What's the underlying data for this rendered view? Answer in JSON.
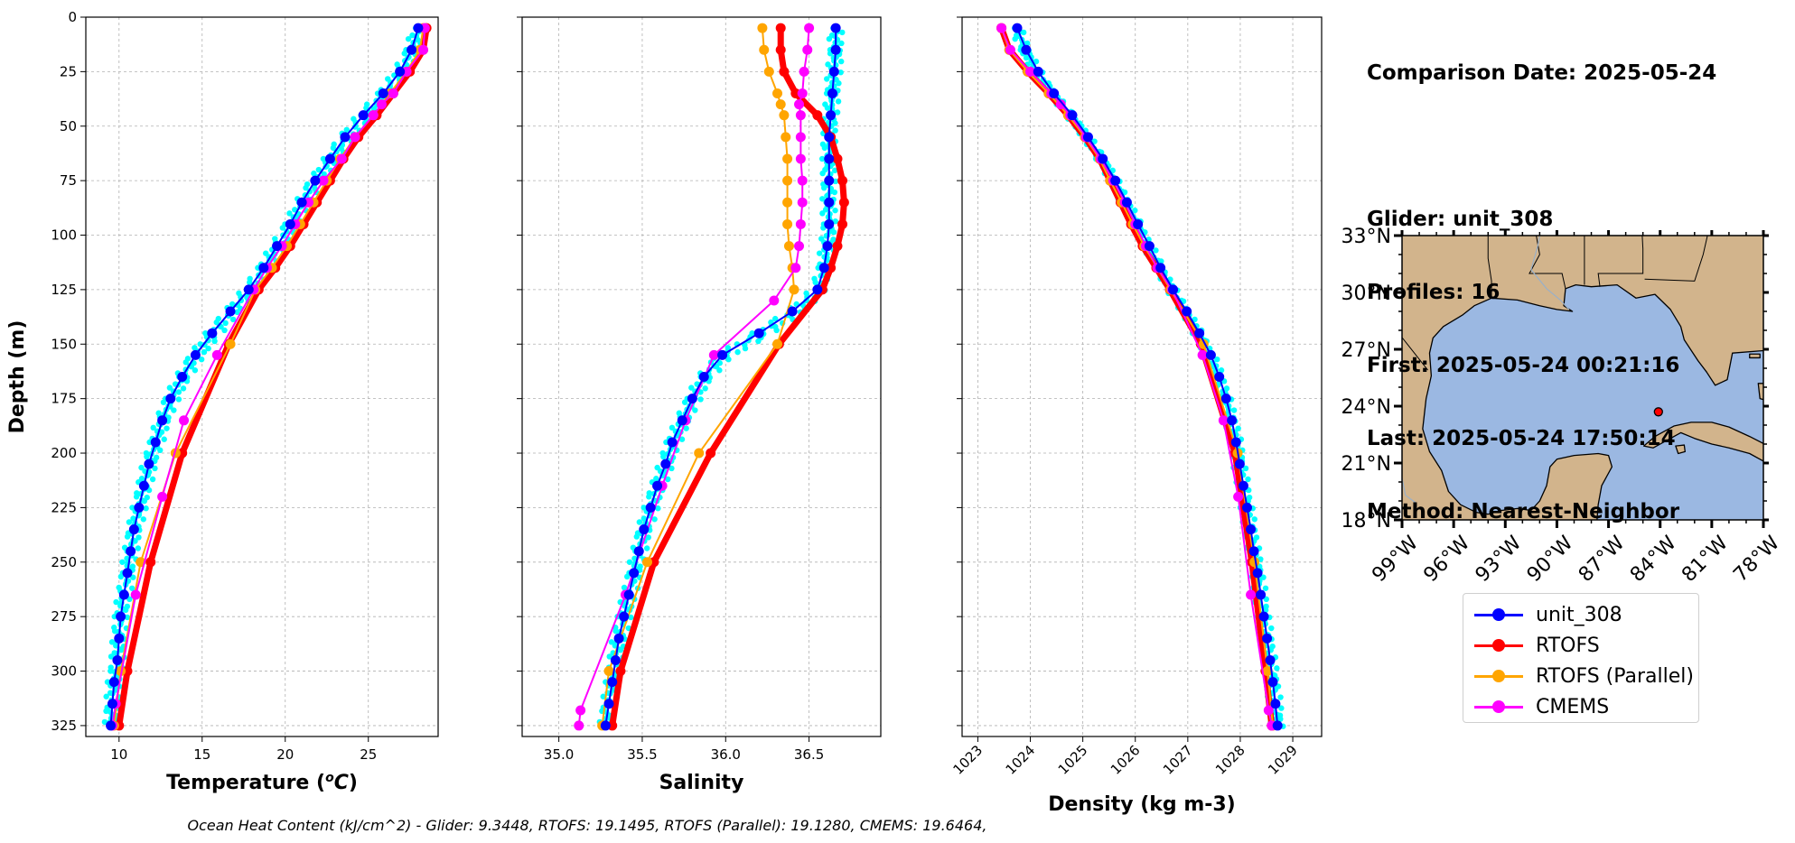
{
  "colors": {
    "glider": "#0000ff",
    "glider_raw": "#00ffff",
    "rtofs": "#ff0000",
    "rtofs_parallel": "#ffa500",
    "cmems": "#ff00ff",
    "land": "#d2b48c",
    "ocean": "#9bb8e2",
    "grid": "#b0b0b0"
  },
  "info": {
    "comparison_date": "Comparison Date: 2025-05-24",
    "glider": "Glider: unit_308",
    "profiles": "Profiles: 16",
    "first": "First: 2025-05-24 00:21:16",
    "last": "Last: 2025-05-24 17:50:14",
    "method": "Method: Nearest-Neighbor"
  },
  "legend": [
    {
      "label": "unit_308",
      "color": "#0000ff"
    },
    {
      "label": "RTOFS",
      "color": "#ff0000"
    },
    {
      "label": "RTOFS (Parallel)",
      "color": "#ffa500"
    },
    {
      "label": "CMEMS",
      "color": "#ff00ff"
    }
  ],
  "footer": "Ocean Heat Content (kJ/cm^2) - Glider: 9.3448,  RTOFS: 19.1495,  RTOFS (Parallel): 19.1280,  CMEMS: 19.6464,",
  "map": {
    "lat_ticks": [
      {
        "value": 33,
        "label": "33°N"
      },
      {
        "value": 30,
        "label": "30°N"
      },
      {
        "value": 27,
        "label": "27°N"
      },
      {
        "value": 24,
        "label": "24°N"
      },
      {
        "value": 21,
        "label": "21°N"
      },
      {
        "value": 18,
        "label": "18°N"
      }
    ],
    "lon_ticks": [
      {
        "value": -99,
        "label": "99°W"
      },
      {
        "value": -96,
        "label": "96°W"
      },
      {
        "value": -93,
        "label": "93°W"
      },
      {
        "value": -90,
        "label": "90°W"
      },
      {
        "value": -87,
        "label": "87°W"
      },
      {
        "value": -84,
        "label": "84°W"
      },
      {
        "value": -81,
        "label": "81°W"
      },
      {
        "value": -78,
        "label": "78°W"
      }
    ],
    "extent": {
      "lon": [
        -99,
        -78
      ],
      "lat": [
        18,
        33
      ]
    },
    "glider_position": {
      "lon": -84.1,
      "lat": 23.7
    }
  },
  "chart_data": [
    {
      "type": "line",
      "xlabel": "Temperature ($^oC$)",
      "ylabel": "Depth (m)",
      "xlim": [
        8,
        29.2
      ],
      "ylim": [
        330,
        0
      ],
      "xticks": [
        10,
        15,
        20,
        25
      ],
      "yticks": [
        0,
        25,
        50,
        75,
        100,
        125,
        150,
        175,
        200,
        225,
        250,
        275,
        300,
        325
      ],
      "grid": true,
      "series": [
        {
          "name": "unit_308",
          "depth": [
            5,
            15,
            25,
            35,
            45,
            55,
            65,
            75,
            85,
            95,
            105,
            115,
            125,
            135,
            145,
            155,
            165,
            175,
            185,
            195,
            205,
            215,
            225,
            235,
            245,
            255,
            265,
            275,
            285,
            295,
            305,
            315,
            325
          ],
          "values": [
            28.0,
            27.6,
            26.9,
            25.9,
            24.7,
            23.6,
            22.7,
            21.8,
            21.0,
            20.3,
            19.5,
            18.7,
            17.8,
            16.7,
            15.6,
            14.6,
            13.8,
            13.1,
            12.6,
            12.2,
            11.8,
            11.5,
            11.2,
            10.9,
            10.7,
            10.5,
            10.3,
            10.1,
            10.0,
            9.9,
            9.7,
            9.6,
            9.5
          ]
        },
        {
          "name": "RTOFS",
          "depth": [
            5,
            15,
            25,
            35,
            45,
            55,
            65,
            75,
            85,
            95,
            105,
            115,
            125,
            150,
            200,
            250,
            300,
            325
          ],
          "values": [
            28.5,
            28.3,
            27.5,
            26.5,
            25.5,
            24.4,
            23.5,
            22.7,
            21.9,
            21.1,
            20.3,
            19.4,
            18.4,
            16.6,
            13.8,
            11.9,
            10.5,
            10.0
          ]
        },
        {
          "name": "RTOFS (Parallel)",
          "depth": [
            5,
            15,
            25,
            35,
            45,
            55,
            65,
            75,
            85,
            95,
            105,
            115,
            125,
            150,
            200,
            250,
            300,
            325
          ],
          "values": [
            28.3,
            28.1,
            27.3,
            26.3,
            25.3,
            24.2,
            23.3,
            22.5,
            21.7,
            20.9,
            20.1,
            19.2,
            18.2,
            16.7,
            13.4,
            11.3,
            10.1,
            9.7
          ]
        },
        {
          "name": "CMEMS",
          "depth": [
            5,
            15,
            25,
            35,
            40,
            45,
            55,
            65,
            75,
            85,
            95,
            105,
            115,
            125,
            155,
            185,
            220,
            265,
            315,
            325
          ],
          "values": [
            28.4,
            28.3,
            27.3,
            26.5,
            25.8,
            25.3,
            24.2,
            23.4,
            22.3,
            21.4,
            20.6,
            19.8,
            18.9,
            18.1,
            15.9,
            13.9,
            12.6,
            11.0,
            9.8,
            9.6
          ]
        }
      ]
    },
    {
      "type": "line",
      "xlabel": "Salinity",
      "ylabel": "",
      "xlim": [
        34.78,
        36.93
      ],
      "ylim": [
        330,
        0
      ],
      "xticks": [
        35.0,
        35.5,
        36.0,
        36.5
      ],
      "yticks": [
        0,
        25,
        50,
        75,
        100,
        125,
        150,
        175,
        200,
        225,
        250,
        275,
        300,
        325
      ],
      "grid": true,
      "series": [
        {
          "name": "unit_308",
          "depth": [
            5,
            15,
            25,
            35,
            45,
            55,
            65,
            75,
            85,
            95,
            105,
            115,
            125,
            135,
            145,
            155,
            165,
            175,
            185,
            195,
            205,
            215,
            225,
            235,
            245,
            255,
            265,
            275,
            285,
            295,
            305,
            315,
            325
          ],
          "values": [
            36.66,
            36.66,
            36.65,
            36.64,
            36.63,
            36.62,
            36.62,
            36.62,
            36.62,
            36.62,
            36.61,
            36.59,
            36.55,
            36.4,
            36.2,
            35.98,
            35.87,
            35.8,
            35.74,
            35.68,
            35.64,
            35.59,
            35.55,
            35.51,
            35.48,
            35.45,
            35.42,
            35.39,
            35.36,
            35.34,
            35.32,
            35.3,
            35.28
          ]
        },
        {
          "name": "RTOFS",
          "depth": [
            5,
            15,
            25,
            35,
            45,
            55,
            65,
            75,
            85,
            95,
            105,
            115,
            125,
            150,
            200,
            250,
            300,
            325
          ],
          "values": [
            36.33,
            36.33,
            36.35,
            36.42,
            36.55,
            36.63,
            36.67,
            36.7,
            36.71,
            36.7,
            36.67,
            36.63,
            36.58,
            36.32,
            35.91,
            35.57,
            35.37,
            35.32
          ]
        },
        {
          "name": "RTOFS (Parallel)",
          "depth": [
            5,
            15,
            25,
            35,
            40,
            45,
            55,
            65,
            75,
            85,
            95,
            105,
            115,
            125,
            150,
            200,
            250,
            300,
            325
          ],
          "values": [
            36.22,
            36.23,
            36.26,
            36.31,
            36.33,
            36.35,
            36.36,
            36.37,
            36.37,
            36.37,
            36.37,
            36.38,
            36.4,
            36.41,
            36.31,
            35.84,
            35.53,
            35.3,
            35.26
          ]
        },
        {
          "name": "CMEMS",
          "depth": [
            5,
            15,
            25,
            35,
            40,
            45,
            55,
            65,
            75,
            85,
            95,
            105,
            115,
            130,
            155,
            185,
            215,
            265,
            318,
            325
          ],
          "values": [
            36.5,
            36.49,
            36.47,
            36.46,
            36.44,
            36.45,
            36.45,
            36.45,
            36.46,
            36.46,
            36.45,
            36.44,
            36.42,
            36.29,
            35.93,
            35.76,
            35.62,
            35.4,
            35.13,
            35.12
          ]
        }
      ]
    },
    {
      "type": "line",
      "xlabel": "Density (kg m-3)",
      "ylabel": "",
      "xlim": [
        1022.7,
        1029.55
      ],
      "ylim": [
        330,
        0
      ],
      "xticks": [
        1023,
        1024,
        1025,
        1026,
        1027,
        1028,
        1029
      ],
      "yticks": [
        0,
        25,
        50,
        75,
        100,
        125,
        150,
        175,
        200,
        225,
        250,
        275,
        300,
        325
      ],
      "grid": true,
      "series": [
        {
          "name": "unit_308",
          "depth": [
            5,
            15,
            25,
            35,
            45,
            55,
            65,
            75,
            85,
            95,
            105,
            115,
            125,
            135,
            145,
            155,
            165,
            175,
            185,
            195,
            205,
            215,
            225,
            235,
            245,
            255,
            265,
            275,
            285,
            295,
            305,
            315,
            325
          ],
          "values": [
            1023.75,
            1023.92,
            1024.15,
            1024.45,
            1024.8,
            1025.1,
            1025.38,
            1025.62,
            1025.84,
            1026.05,
            1026.27,
            1026.48,
            1026.72,
            1026.98,
            1027.22,
            1027.44,
            1027.6,
            1027.73,
            1027.84,
            1027.92,
            1027.99,
            1028.06,
            1028.13,
            1028.2,
            1028.26,
            1028.33,
            1028.39,
            1028.45,
            1028.51,
            1028.57,
            1028.62,
            1028.67,
            1028.71
          ]
        },
        {
          "name": "RTOFS",
          "depth": [
            5,
            15,
            25,
            35,
            45,
            55,
            65,
            75,
            85,
            95,
            105,
            115,
            125,
            150,
            200,
            250,
            300,
            325
          ],
          "values": [
            1023.45,
            1023.6,
            1023.95,
            1024.35,
            1024.72,
            1025.04,
            1025.32,
            1025.52,
            1025.72,
            1025.92,
            1026.14,
            1026.4,
            1026.66,
            1027.25,
            1027.9,
            1028.22,
            1028.48,
            1028.6
          ]
        },
        {
          "name": "RTOFS (Parallel)",
          "depth": [
            5,
            15,
            25,
            35,
            45,
            55,
            65,
            75,
            85,
            95,
            105,
            115,
            125,
            150,
            200,
            250,
            300,
            325
          ],
          "values": [
            1023.45,
            1023.6,
            1023.95,
            1024.35,
            1024.72,
            1025.04,
            1025.32,
            1025.52,
            1025.74,
            1025.95,
            1026.17,
            1026.42,
            1026.67,
            1027.3,
            1027.95,
            1028.27,
            1028.52,
            1028.62
          ]
        },
        {
          "name": "CMEMS",
          "depth": [
            5,
            15,
            25,
            35,
            40,
            45,
            55,
            65,
            75,
            85,
            95,
            105,
            115,
            125,
            155,
            185,
            220,
            265,
            318,
            325
          ],
          "values": [
            1023.45,
            1023.62,
            1024.0,
            1024.4,
            1024.58,
            1024.76,
            1025.06,
            1025.34,
            1025.58,
            1025.8,
            1026.0,
            1026.2,
            1026.42,
            1026.7,
            1027.28,
            1027.68,
            1027.96,
            1028.2,
            1028.54,
            1028.6
          ]
        }
      ]
    }
  ]
}
